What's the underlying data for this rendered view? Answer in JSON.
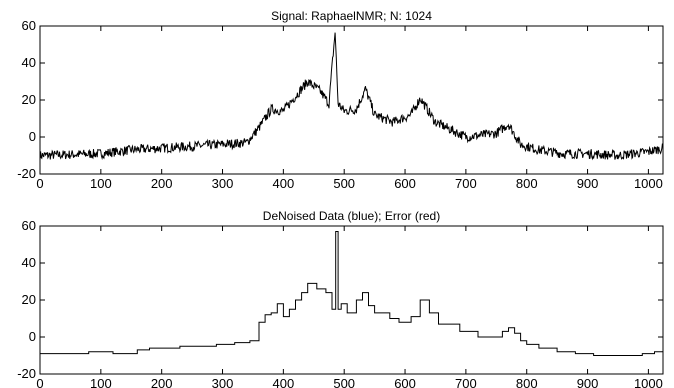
{
  "chart_data": [
    {
      "type": "line",
      "title": "Signal: RaphaelNMR; N: 1024",
      "xlabel": "",
      "ylabel": "",
      "xlim": [
        0,
        1024
      ],
      "ylim": [
        -20,
        60
      ],
      "x_ticks": [
        0,
        100,
        200,
        300,
        400,
        500,
        600,
        700,
        800,
        900,
        1000
      ],
      "y_ticks": [
        -20,
        0,
        20,
        40,
        60
      ],
      "grid": false,
      "series": [
        {
          "color": "#000000",
          "noise_amplitude": 2.6,
          "x": [
            0,
            100,
            150,
            200,
            250,
            300,
            340,
            360,
            380,
            400,
            420,
            440,
            460,
            475,
            485,
            490,
            500,
            520,
            535,
            550,
            580,
            610,
            625,
            650,
            700,
            750,
            770,
            790,
            820,
            860,
            900,
            950,
            1000,
            1024
          ],
          "y": [
            -10,
            -9,
            -7,
            -6,
            -5,
            -4,
            -3,
            5,
            15,
            14,
            22,
            30,
            25,
            18,
            57,
            18,
            14,
            15,
            26,
            12,
            8,
            12,
            21,
            8,
            0,
            2,
            7,
            -4,
            -7,
            -9,
            -9,
            -10,
            -8,
            -6
          ]
        }
      ]
    },
    {
      "type": "line",
      "title": "DeNoised Data (blue); Error (red)",
      "xlabel": "",
      "ylabel": "",
      "xlim": [
        0,
        1024
      ],
      "ylim": [
        -20,
        60
      ],
      "x_ticks": [
        0,
        100,
        200,
        300,
        400,
        500,
        600,
        700,
        800,
        900,
        1000
      ],
      "y_ticks": [
        -20,
        0,
        20,
        40,
        60
      ],
      "grid": false,
      "series": [
        {
          "color": "#000000",
          "style": "step",
          "x": [
            0,
            70,
            80,
            120,
            160,
            180,
            200,
            230,
            260,
            290,
            320,
            345,
            360,
            370,
            380,
            390,
            400,
            410,
            420,
            430,
            440,
            455,
            470,
            480,
            486,
            490,
            495,
            505,
            520,
            530,
            540,
            550,
            560,
            575,
            590,
            610,
            625,
            640,
            655,
            670,
            690,
            720,
            740,
            760,
            770,
            780,
            790,
            800,
            820,
            850,
            880,
            910,
            950,
            990,
            1010,
            1024
          ],
          "y": [
            -9,
            -9,
            -8,
            -9,
            -7,
            -6,
            -6,
            -5,
            -5,
            -4,
            -3,
            -2,
            8,
            12,
            13,
            18,
            11,
            15,
            20,
            24,
            29,
            26,
            24,
            15,
            57,
            15,
            18,
            13,
            20,
            24,
            17,
            13,
            13,
            10,
            8,
            11,
            20,
            13,
            7,
            7,
            3,
            0,
            0,
            3,
            5,
            2,
            -2,
            -4,
            -6,
            -8,
            -9,
            -10,
            -10,
            -9,
            -8,
            -7
          ]
        }
      ]
    }
  ]
}
